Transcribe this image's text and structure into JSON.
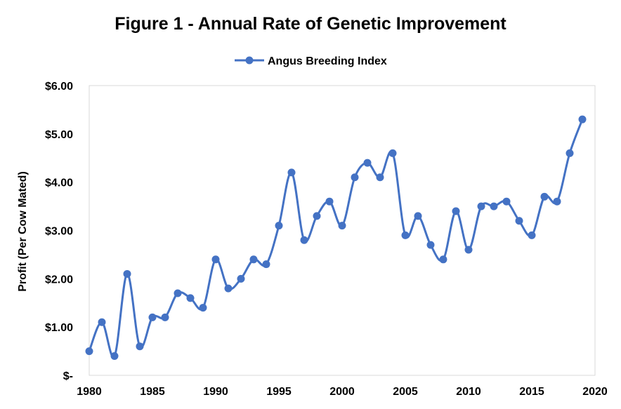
{
  "chart_data": {
    "type": "line",
    "title": "Figure 1 - Annual Rate of Genetic Improvement",
    "xlabel": "",
    "ylabel": "Profit (Per Cow Mated)",
    "legend": "top-center",
    "grid": false,
    "xlim": [
      1980,
      2020
    ],
    "ylim": [
      0,
      6
    ],
    "x_ticks": [
      1980,
      1985,
      1990,
      1995,
      2000,
      2005,
      2010,
      2015,
      2020
    ],
    "x_tick_labels": [
      "1980",
      "1985",
      "1990",
      "1995",
      "2000",
      "2005",
      "2010",
      "2015",
      "2020"
    ],
    "y_ticks": [
      0,
      1,
      2,
      3,
      4,
      5,
      6
    ],
    "y_tick_labels": [
      "$-",
      "$1.00",
      "$2.00",
      "$3.00",
      "$4.00",
      "$5.00",
      "$6.00"
    ],
    "series": [
      {
        "name": "Angus Breeding Index",
        "color": "#4472C4",
        "x": [
          1980,
          1981,
          1982,
          1983,
          1984,
          1985,
          1986,
          1987,
          1988,
          1989,
          1990,
          1991,
          1992,
          1993,
          1994,
          1995,
          1996,
          1997,
          1998,
          1999,
          2000,
          2001,
          2002,
          2003,
          2004,
          2005,
          2006,
          2007,
          2008,
          2009,
          2010,
          2011,
          2012,
          2013,
          2014,
          2015,
          2016,
          2017,
          2018,
          2019
        ],
        "values": [
          0.5,
          1.1,
          0.4,
          2.1,
          0.6,
          1.2,
          1.2,
          1.7,
          1.6,
          1.4,
          2.4,
          1.8,
          2.0,
          2.4,
          2.3,
          3.1,
          4.2,
          2.8,
          3.3,
          3.6,
          3.1,
          4.1,
          4.4,
          4.1,
          4.6,
          2.9,
          3.3,
          2.7,
          2.4,
          3.4,
          2.6,
          3.5,
          3.5,
          3.6,
          3.2,
          2.9,
          3.7,
          3.6,
          4.6,
          5.3
        ]
      }
    ]
  }
}
